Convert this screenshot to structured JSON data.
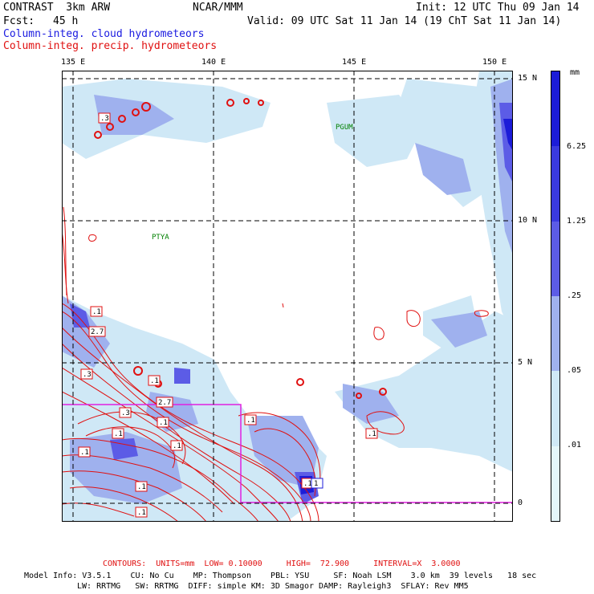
{
  "header": {
    "model": "CONTRAST  3km ARW",
    "org": "NCAR/MMM",
    "init": "Init: 12 UTC Thu 09 Jan 14",
    "fcst_label": "Fcst:",
    "fcst_value": "45 h",
    "valid": "Valid: 09 UTC Sat 11 Jan 14 (19 ChT Sat 11 Jan 14)",
    "field_cloud": "Column-integ. cloud hydrometeors",
    "field_precip": "Column-integ. precip. hydrometeors"
  },
  "colors": {
    "cloud_fill_light": "#cfe8f6",
    "cloud_fill_mid": "#9fb1ee",
    "cloud_fill_dark": "#5c5ce6",
    "cloud_fill_max": "#1c1cd8",
    "precip_contour": "#e01010",
    "box": "#e020e0"
  },
  "map": {
    "lon_labels": [
      "135 E",
      "140 E",
      "145 E",
      "150 E"
    ],
    "lat_labels": [
      "15 N",
      "10 N",
      "5 N",
      "0"
    ],
    "stations": [
      "PGUM",
      "PTYA"
    ]
  },
  "contour_labels": [
    ".3",
    ".1",
    "2.7",
    ".3",
    ".1",
    "2.7",
    ".3",
    ".1",
    ".1",
    ".1",
    ".1",
    ".1",
    ".1",
    ".1",
    ".1",
    ".1",
    "1"
  ],
  "colorbar": {
    "unit": "mm",
    "levels": [
      "6.25",
      "1.25",
      ".25",
      ".05",
      ".01"
    ],
    "colors": [
      "#1c1cd8",
      "#3a3adf",
      "#5c5ce6",
      "#9fb1ee",
      "#cfe8f6",
      "#e4f6fa",
      "#ffffff"
    ]
  },
  "footer": {
    "contours": "CONTOURS:  UNITS=mm  LOW= 0.10000     HIGH=  72.900     INTERVAL=X  3.0000",
    "info1": "Model Info: V3.5.1    CU: No Cu    MP: Thompson    PBL: YSU     SF: Noah LSM    3.0 km  39 levels   18 sec",
    "info2": "LW: RRTMG   SW: RRTMG  DIFF: simple KM: 3D Smagor DAMP: Rayleigh3  SFLAY: Rev MM5"
  }
}
